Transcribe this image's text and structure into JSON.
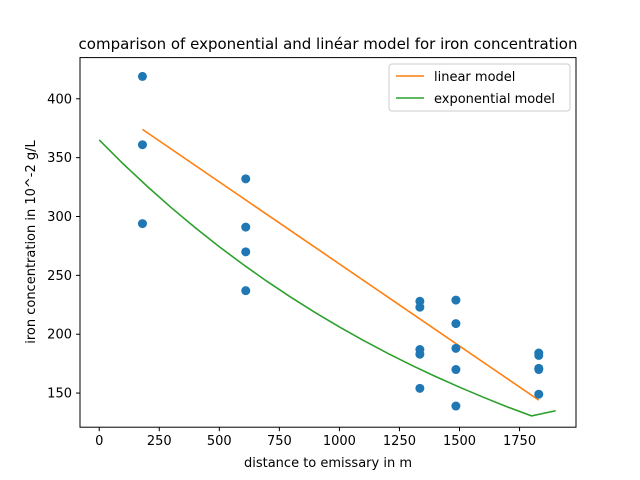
{
  "chart_data": {
    "type": "scatter",
    "title": "comparison of exponential and linéar model for iron concentration",
    "xlabel": "distance to emissary in m",
    "ylabel": "iron concentration in 10^-2 g/L",
    "xlim": [
      -80,
      1985
    ],
    "ylim": [
      121,
      435
    ],
    "xticks": [
      0,
      250,
      500,
      750,
      1000,
      1250,
      1500,
      1750
    ],
    "yticks": [
      150,
      200,
      250,
      300,
      350,
      400
    ],
    "grid": false,
    "legend_position": "top-right",
    "points": {
      "color": "#1f77b4",
      "x": [
        180,
        180,
        180,
        610,
        610,
        610,
        610,
        1335,
        1335,
        1335,
        1335,
        1335,
        1485,
        1485,
        1485,
        1485,
        1485,
        1830,
        1830,
        1830,
        1830,
        1830
      ],
      "y": [
        419,
        361,
        294,
        332,
        291,
        270,
        237,
        228,
        223,
        187,
        183,
        154,
        229,
        209,
        188,
        170,
        139,
        184,
        182,
        171,
        170,
        149
      ]
    },
    "series": [
      {
        "name": "linear model",
        "color": "#ff7f0e",
        "x": [
          180,
          1830
        ],
        "y": [
          374,
          144
        ]
      },
      {
        "name": "exponential model",
        "color": "#2ca02c",
        "x": [
          0,
          100,
          200,
          300,
          400,
          500,
          600,
          700,
          800,
          900,
          1000,
          1100,
          1200,
          1300,
          1400,
          1500,
          1600,
          1700,
          1800,
          1900
        ],
        "y": [
          365,
          344.7,
          325.6,
          307.5,
          290.4,
          274.3,
          259.1,
          244.7,
          231.1,
          218.3,
          206.2,
          194.7,
          183.9,
          173.7,
          164.1,
          155.0,
          146.4,
          138.2,
          130.6,
          135
        ]
      }
    ]
  }
}
